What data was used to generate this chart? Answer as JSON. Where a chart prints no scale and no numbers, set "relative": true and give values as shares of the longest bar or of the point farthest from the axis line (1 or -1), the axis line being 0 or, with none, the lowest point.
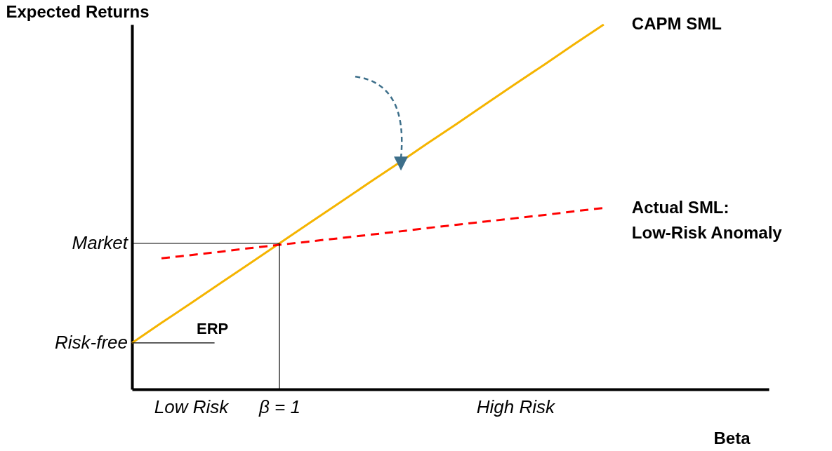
{
  "chart_data": {
    "type": "line",
    "xlabel": "Beta",
    "ylabel": "Expected Returns",
    "relative": true,
    "categories": [
      null,
      null,
      "Low Risk",
      null,
      null,
      "β = 1",
      null,
      null,
      null,
      null,
      null,
      null,
      null,
      "High Risk",
      null,
      null,
      null,
      null,
      null,
      null,
      null,
      null
    ],
    "series": [
      {
        "name": "CAPM SML",
        "color": "#f5b400",
        "values": [
          0.127,
          0.182,
          0.236,
          0.291,
          0.345,
          0.4,
          0.455,
          0.509,
          0.564,
          0.618,
          0.673,
          0.727,
          0.782,
          0.837,
          0.891,
          0.946,
          1.0,
          null,
          null,
          null,
          null,
          null
        ]
      },
      {
        "name": "Actual SML:\nLow-Risk Anomaly",
        "color": "#ff0000",
        "line_style": "dashed",
        "values": [
          null,
          0.359,
          0.368,
          0.377,
          0.387,
          0.396,
          0.405,
          0.414,
          0.423,
          0.432,
          0.442,
          0.451,
          0.46,
          0.469,
          0.478,
          0.488,
          0.497,
          null,
          null,
          null,
          null,
          null
        ]
      }
    ],
    "ref_lines": [
      {
        "axis": "y",
        "value": 0.4,
        "label": "Market",
        "color": "#000000"
      },
      {
        "axis": "y",
        "value": 0.127,
        "label": "Risk-free",
        "color": "#000000"
      },
      {
        "axis": "x",
        "value": "β = 1",
        "color": "#000000"
      }
    ],
    "annotations": [
      "ERP"
    ],
    "marker": "none"
  }
}
